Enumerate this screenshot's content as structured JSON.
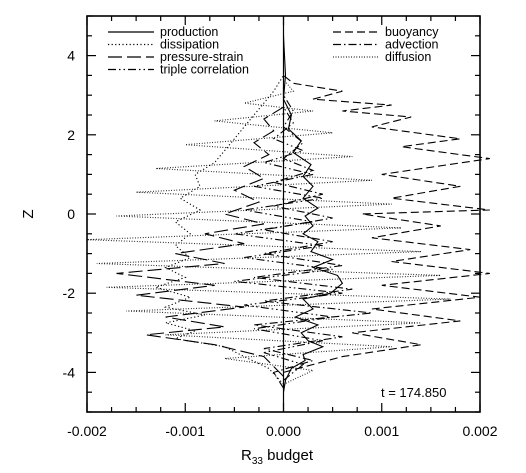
{
  "chart_data": {
    "type": "line",
    "title": "",
    "xlabel": "R",
    "xlabel_sub": "33",
    "xlabel_suffix": " budget",
    "ylabel": "Z",
    "xlim": [
      -0.002,
      0.002
    ],
    "ylim": [
      -5,
      5
    ],
    "xticks": [
      -0.002,
      -0.001,
      0.0,
      0.001,
      0.002
    ],
    "xtick_labels": [
      "-0.002",
      "-0.001",
      "0.000",
      "0.001",
      "0.002"
    ],
    "yticks": [
      -4,
      -2,
      0,
      2,
      4
    ],
    "ytick_labels": [
      "-4",
      "-2",
      "0",
      "2",
      "4"
    ],
    "grid": false,
    "legend_placement": "top",
    "annotation": "t = 174.850",
    "series": [
      {
        "name": "production",
        "dash": "solid",
        "color": "#000000",
        "points": [
          [
            0.0,
            -4.5
          ],
          [
            2e-05,
            -4.2
          ],
          [
            8e-05,
            -3.9
          ],
          [
            0.00022,
            -3.7
          ],
          [
            0.0002,
            -3.55
          ],
          [
            0.0004,
            -3.35
          ],
          [
            0.00025,
            -3.2
          ],
          [
            0.00018,
            -3.0
          ],
          [
            0.00035,
            -2.8
          ],
          [
            0.00012,
            -2.6
          ],
          [
            0.0003,
            -2.4
          ],
          [
            0.0002,
            -2.15
          ],
          [
            0.00048,
            -2.0
          ],
          [
            0.0006,
            -1.75
          ],
          [
            0.00055,
            -1.55
          ],
          [
            0.0003,
            -1.35
          ],
          [
            0.0005,
            -1.15
          ],
          [
            0.00028,
            -0.95
          ],
          [
            0.00035,
            -0.7
          ],
          [
            0.0002,
            -0.5
          ],
          [
            0.0003,
            -0.3
          ],
          [
            0.00022,
            -0.05
          ],
          [
            0.00035,
            0.15
          ],
          [
            0.0002,
            0.4
          ],
          [
            0.0003,
            0.7
          ],
          [
            0.0002,
            0.95
          ],
          [
            0.00028,
            1.25
          ],
          [
            0.0001,
            1.55
          ],
          [
            0.00018,
            1.85
          ],
          [
            5e-05,
            2.15
          ],
          [
            8e-05,
            2.5
          ],
          [
            0.0,
            2.9
          ],
          [
            2e-05,
            3.5
          ],
          [
            0.0,
            4.5
          ]
        ]
      },
      {
        "name": "dissipation",
        "dash": "dotted",
        "color": "#000000",
        "points": [
          [
            0.0,
            -4.3
          ],
          [
            -0.00015,
            -3.9
          ],
          [
            -0.0004,
            -3.6
          ],
          [
            -0.0006,
            -3.35
          ],
          [
            -0.0011,
            -3.15
          ],
          [
            -0.0009,
            -2.95
          ],
          [
            -0.0012,
            -2.75
          ],
          [
            -0.0008,
            -2.55
          ],
          [
            -0.0012,
            -2.35
          ],
          [
            -0.00095,
            -2.1
          ],
          [
            -0.0013,
            -1.85
          ],
          [
            -0.001,
            -1.6
          ],
          [
            -0.0012,
            -1.35
          ],
          [
            -0.00095,
            -1.1
          ],
          [
            -0.0011,
            -0.8
          ],
          [
            -0.00095,
            -0.5
          ],
          [
            -0.0011,
            -0.2
          ],
          [
            -0.00085,
            0.1
          ],
          [
            -0.00105,
            0.4
          ],
          [
            -0.00085,
            0.7
          ],
          [
            -0.0009,
            1.0
          ],
          [
            -0.0007,
            1.3
          ],
          [
            -0.0006,
            1.6
          ],
          [
            -0.0005,
            1.9
          ],
          [
            -0.0004,
            2.2
          ],
          [
            -0.0003,
            2.5
          ],
          [
            -0.0002,
            2.8
          ],
          [
            -0.0001,
            3.1
          ],
          [
            0.0,
            3.5
          ]
        ]
      },
      {
        "name": "pressure-strain",
        "dash": "longdash",
        "color": "#000000",
        "points": [
          [
            0.0,
            -4.1
          ],
          [
            -0.0002,
            -3.6
          ],
          [
            -0.0007,
            -3.3
          ],
          [
            -0.0014,
            -3.05
          ],
          [
            -0.0006,
            -2.85
          ],
          [
            -0.0012,
            -2.6
          ],
          [
            -0.0004,
            -2.35
          ],
          [
            -0.0015,
            -2.05
          ],
          [
            -0.0007,
            -1.8
          ],
          [
            -0.0017,
            -1.5
          ],
          [
            -0.0006,
            -1.25
          ],
          [
            -0.0011,
            -1.0
          ],
          [
            -0.0004,
            -0.75
          ],
          [
            -0.0008,
            -0.5
          ],
          [
            -0.0002,
            -0.25
          ],
          [
            -0.0006,
            0.0
          ],
          [
            -0.00025,
            0.3
          ],
          [
            -0.0005,
            0.6
          ],
          [
            -0.0002,
            0.9
          ],
          [
            -0.0004,
            1.2
          ],
          [
            -0.00015,
            1.5
          ],
          [
            -0.0003,
            1.8
          ],
          [
            -0.0001,
            2.1
          ],
          [
            -0.0002,
            2.4
          ],
          [
            0.0,
            2.7
          ],
          [
            0.0,
            3.2
          ]
        ]
      },
      {
        "name": "triple correlation",
        "dash": "dashdotdot",
        "color": "#000000",
        "points": [
          [
            0.0,
            -4.2
          ],
          [
            0.0002,
            -3.8
          ],
          [
            -0.0002,
            -3.5
          ],
          [
            0.0004,
            -3.2
          ],
          [
            -0.0003,
            -2.9
          ],
          [
            0.0005,
            -2.6
          ],
          [
            -0.0004,
            -2.3
          ],
          [
            0.0006,
            -2.0
          ],
          [
            -0.0005,
            -1.7
          ],
          [
            0.0005,
            -1.4
          ],
          [
            -0.0004,
            -1.1
          ],
          [
            0.0004,
            -0.8
          ],
          [
            -0.0005,
            -0.5
          ],
          [
            0.0003,
            -0.2
          ],
          [
            -0.0004,
            0.1
          ],
          [
            0.0004,
            0.4
          ],
          [
            -0.0003,
            0.7
          ],
          [
            0.0003,
            1.0
          ],
          [
            -0.0002,
            1.3
          ],
          [
            0.0002,
            1.6
          ],
          [
            -0.0001,
            1.9
          ],
          [
            0.0001,
            2.3
          ],
          [
            0.0,
            2.7
          ]
        ]
      },
      {
        "name": "buoyancy",
        "dash": "dashed",
        "color": "#000000",
        "points": [
          [
            0.0,
            -4.0
          ],
          [
            0.0006,
            -3.6
          ],
          [
            0.0014,
            -3.3
          ],
          [
            0.0007,
            -3.0
          ],
          [
            0.0018,
            -2.7
          ],
          [
            0.0009,
            -2.4
          ],
          [
            0.002,
            -2.1
          ],
          [
            0.001,
            -1.8
          ],
          [
            0.0021,
            -1.5
          ],
          [
            0.0011,
            -1.2
          ],
          [
            0.0019,
            -0.9
          ],
          [
            0.0009,
            -0.6
          ],
          [
            0.0016,
            -0.3
          ],
          [
            0.0008,
            0.0
          ],
          [
            0.0021,
            0.1
          ],
          [
            0.0011,
            0.4
          ],
          [
            0.0018,
            0.7
          ],
          [
            0.001,
            1.0
          ],
          [
            0.0021,
            1.4
          ],
          [
            0.0012,
            1.7
          ],
          [
            0.0018,
            1.9
          ],
          [
            0.0009,
            2.2
          ],
          [
            0.0013,
            2.45
          ],
          [
            0.0006,
            2.6
          ],
          [
            0.0011,
            2.75
          ],
          [
            0.0003,
            2.9
          ],
          [
            0.0006,
            3.1
          ],
          [
            0.0001,
            3.3
          ],
          [
            0.0,
            3.5
          ]
        ]
      },
      {
        "name": "advection",
        "dash": "dashdot",
        "color": "#000000",
        "points": [
          [
            0.0,
            -4.4
          ],
          [
            -0.0001,
            -4.0
          ],
          [
            0.0003,
            -3.7
          ],
          [
            -0.0002,
            -3.4
          ],
          [
            0.0006,
            -3.1
          ],
          [
            -0.0003,
            -2.8
          ],
          [
            0.0009,
            -2.5
          ],
          [
            -0.0002,
            -2.2
          ],
          [
            0.0007,
            -1.9
          ],
          [
            -0.0003,
            -1.6
          ],
          [
            0.0006,
            -1.3
          ],
          [
            -0.0002,
            -1.0
          ],
          [
            0.0005,
            -0.7
          ],
          [
            -0.0002,
            -0.4
          ],
          [
            0.0005,
            -0.1
          ],
          [
            -0.0001,
            0.2
          ],
          [
            0.0004,
            0.5
          ],
          [
            -0.0001,
            0.8
          ],
          [
            0.0003,
            1.1
          ],
          [
            0.0,
            1.4
          ],
          [
            0.0002,
            1.8
          ],
          [
            0.0,
            2.2
          ],
          [
            0.0001,
            2.6
          ],
          [
            0.0,
            3.0
          ]
        ]
      },
      {
        "name": "diffusion",
        "dash": "fine-dotted",
        "color": "#000000",
        "points": [
          [
            0.0,
            -4.3
          ],
          [
            0.0003,
            -3.95
          ],
          [
            -0.0006,
            -3.65
          ],
          [
            0.0011,
            -3.35
          ],
          [
            -0.0012,
            -3.05
          ],
          [
            0.0014,
            -2.75
          ],
          [
            -0.0016,
            -2.45
          ],
          [
            0.0017,
            -2.15
          ],
          [
            -0.0018,
            -1.85
          ],
          [
            0.0016,
            -1.55
          ],
          [
            -0.0019,
            -1.25
          ],
          [
            0.0014,
            -0.95
          ],
          [
            -0.002,
            -0.65
          ],
          [
            0.0012,
            -0.35
          ],
          [
            -0.0017,
            -0.05
          ],
          [
            0.0011,
            0.25
          ],
          [
            -0.0015,
            0.55
          ],
          [
            0.0009,
            0.85
          ],
          [
            -0.0013,
            1.15
          ],
          [
            0.0007,
            1.45
          ],
          [
            -0.001,
            1.75
          ],
          [
            0.0005,
            2.05
          ],
          [
            -0.0007,
            2.35
          ],
          [
            0.0003,
            2.6
          ],
          [
            -0.0004,
            2.8
          ],
          [
            0.0001,
            3.1
          ],
          [
            0.0,
            3.4
          ]
        ]
      }
    ]
  }
}
